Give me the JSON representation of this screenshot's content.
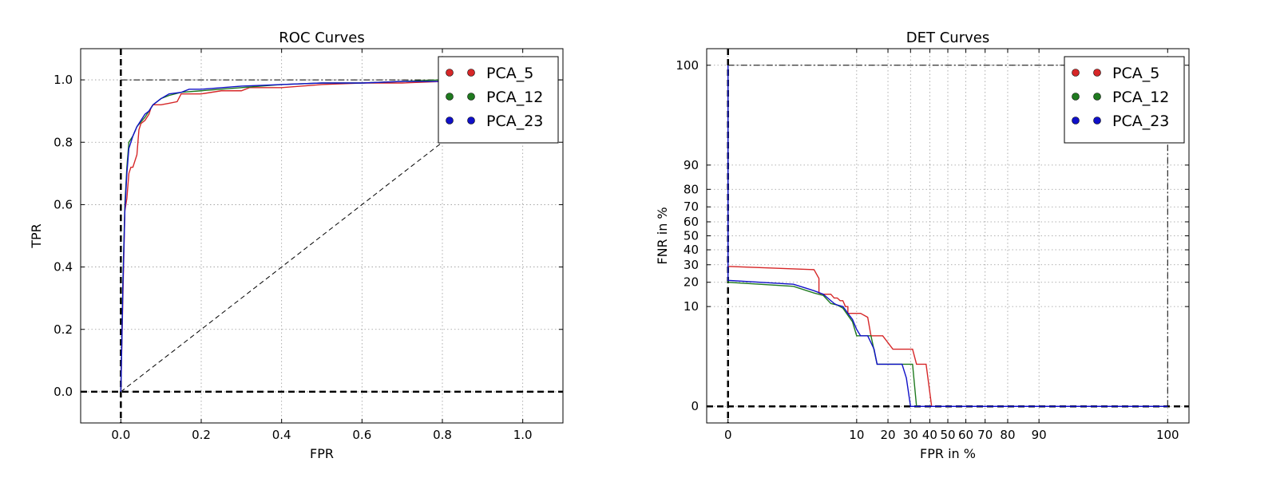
{
  "colors": {
    "PCA_5": "#d62728",
    "PCA_12": "#1f7a1f",
    "PCA_23": "#1010c8"
  },
  "chart_data": [
    {
      "type": "line",
      "title": "ROC Curves",
      "xlabel": "FPR",
      "ylabel": "TPR",
      "xlim": [
        -0.1,
        1.1
      ],
      "ylim": [
        -0.1,
        1.1
      ],
      "xticks": [
        "0.0",
        "0.2",
        "0.4",
        "0.6",
        "0.8",
        "1.0"
      ],
      "yticks": [
        "0.0",
        "0.2",
        "0.4",
        "0.6",
        "0.8",
        "1.0"
      ],
      "grid": true,
      "legend": "top-right",
      "reference_lines": {
        "chance_diagonal": [
          [
            0,
            0
          ],
          [
            1,
            1
          ]
        ],
        "perfect_level": 1.0,
        "zero_x": 0.0,
        "zero_y": 0.0
      },
      "series": [
        {
          "name": "PCA_5",
          "points": [
            [
              0,
              0
            ],
            [
              0.005,
              0.3
            ],
            [
              0.01,
              0.58
            ],
            [
              0.015,
              0.62
            ],
            [
              0.02,
              0.7
            ],
            [
              0.025,
              0.72
            ],
            [
              0.03,
              0.72
            ],
            [
              0.035,
              0.74
            ],
            [
              0.04,
              0.76
            ],
            [
              0.045,
              0.84
            ],
            [
              0.05,
              0.86
            ],
            [
              0.06,
              0.87
            ],
            [
              0.07,
              0.89
            ],
            [
              0.075,
              0.91
            ],
            [
              0.08,
              0.92
            ],
            [
              0.1,
              0.92
            ],
            [
              0.12,
              0.925
            ],
            [
              0.14,
              0.93
            ],
            [
              0.15,
              0.955
            ],
            [
              0.2,
              0.955
            ],
            [
              0.25,
              0.965
            ],
            [
              0.3,
              0.965
            ],
            [
              0.32,
              0.975
            ],
            [
              0.4,
              0.975
            ],
            [
              0.5,
              0.985
            ],
            [
              0.6,
              0.99
            ],
            [
              0.7,
              0.99
            ],
            [
              0.8,
              0.995
            ],
            [
              1,
              1
            ]
          ]
        },
        {
          "name": "PCA_12",
          "points": [
            [
              0,
              0
            ],
            [
              0.005,
              0.35
            ],
            [
              0.01,
              0.6
            ],
            [
              0.015,
              0.72
            ],
            [
              0.02,
              0.8
            ],
            [
              0.03,
              0.82
            ],
            [
              0.04,
              0.85
            ],
            [
              0.06,
              0.88
            ],
            [
              0.07,
              0.9
            ],
            [
              0.08,
              0.92
            ],
            [
              0.1,
              0.94
            ],
            [
              0.12,
              0.95
            ],
            [
              0.15,
              0.96
            ],
            [
              0.2,
              0.965
            ],
            [
              0.3,
              0.975
            ],
            [
              0.4,
              0.985
            ],
            [
              0.5,
              0.99
            ],
            [
              0.6,
              0.99
            ],
            [
              0.7,
              0.995
            ],
            [
              0.8,
              1.0
            ],
            [
              1,
              1
            ]
          ]
        },
        {
          "name": "PCA_23",
          "points": [
            [
              0,
              0
            ],
            [
              0.005,
              0.33
            ],
            [
              0.01,
              0.58
            ],
            [
              0.015,
              0.7
            ],
            [
              0.02,
              0.78
            ],
            [
              0.03,
              0.82
            ],
            [
              0.04,
              0.85
            ],
            [
              0.05,
              0.87
            ],
            [
              0.06,
              0.89
            ],
            [
              0.07,
              0.9
            ],
            [
              0.08,
              0.92
            ],
            [
              0.1,
              0.94
            ],
            [
              0.12,
              0.955
            ],
            [
              0.15,
              0.96
            ],
            [
              0.17,
              0.97
            ],
            [
              0.2,
              0.97
            ],
            [
              0.3,
              0.98
            ],
            [
              0.4,
              0.985
            ],
            [
              0.5,
              0.99
            ],
            [
              0.6,
              0.99
            ],
            [
              0.7,
              0.995
            ],
            [
              0.8,
              0.995
            ],
            [
              1,
              1
            ]
          ]
        }
      ]
    },
    {
      "type": "line",
      "title": "DET Curves",
      "xlabel": "FPR in %",
      "ylabel": "FNR in %",
      "x_scale": "probit",
      "y_scale": "probit",
      "xticks": [
        "0",
        "10",
        "20",
        "30",
        "40",
        "50",
        "60",
        "70",
        "80",
        "90",
        "100"
      ],
      "yticks": [
        "0",
        "10",
        "20",
        "30",
        "40",
        "50",
        "60",
        "70",
        "80",
        "90",
        "100"
      ],
      "grid": true,
      "legend": "top-right",
      "reference_lines": {
        "x_level": 0,
        "y_level": 0,
        "top_level": 100,
        "right_level": 100
      },
      "series": [
        {
          "name": "PCA_5",
          "points": [
            [
              0,
              100
            ],
            [
              0,
              29
            ],
            [
              3,
              27
            ],
            [
              3.5,
              22
            ],
            [
              3.5,
              15
            ],
            [
              4,
              14.5
            ],
            [
              5,
              14.5
            ],
            [
              5.5,
              13
            ],
            [
              6,
              13
            ],
            [
              6.5,
              12
            ],
            [
              7,
              12
            ],
            [
              7.5,
              10
            ],
            [
              8,
              10
            ],
            [
              8,
              8
            ],
            [
              11,
              8
            ],
            [
              13,
              7
            ],
            [
              14,
              3.5
            ],
            [
              18,
              3.5
            ],
            [
              22,
              2
            ],
            [
              31,
              2
            ],
            [
              33,
              1
            ],
            [
              38,
              1
            ],
            [
              41,
              0
            ],
            [
              100,
              0
            ]
          ]
        },
        {
          "name": "PCA_12",
          "points": [
            [
              0,
              100
            ],
            [
              0,
              20
            ],
            [
              1.5,
              18
            ],
            [
              3,
              15
            ],
            [
              4,
              14
            ],
            [
              5,
              11
            ],
            [
              6,
              10.5
            ],
            [
              7,
              9.5
            ],
            [
              8,
              7.5
            ],
            [
              9,
              6
            ],
            [
              10,
              3.5
            ],
            [
              12,
              3.5
            ],
            [
              14,
              3.5
            ],
            [
              16,
              1
            ],
            [
              25,
              1
            ],
            [
              28,
              1
            ],
            [
              31,
              1
            ],
            [
              33,
              0
            ],
            [
              100,
              0
            ]
          ]
        },
        {
          "name": "PCA_23",
          "points": [
            [
              0,
              100
            ],
            [
              0,
              21
            ],
            [
              1.5,
              19
            ],
            [
              3,
              16
            ],
            [
              4,
              14.5
            ],
            [
              5,
              12
            ],
            [
              5.5,
              11
            ],
            [
              6,
              10.5
            ],
            [
              7,
              10
            ],
            [
              7.5,
              9
            ],
            [
              8,
              8
            ],
            [
              9,
              6.5
            ],
            [
              10,
              4.5
            ],
            [
              11,
              3.5
            ],
            [
              13,
              3.5
            ],
            [
              15,
              2
            ],
            [
              16,
              1
            ],
            [
              20,
              1
            ],
            [
              26,
              1
            ],
            [
              28,
              0.5
            ],
            [
              30,
              0
            ],
            [
              100,
              0
            ]
          ]
        }
      ]
    }
  ]
}
